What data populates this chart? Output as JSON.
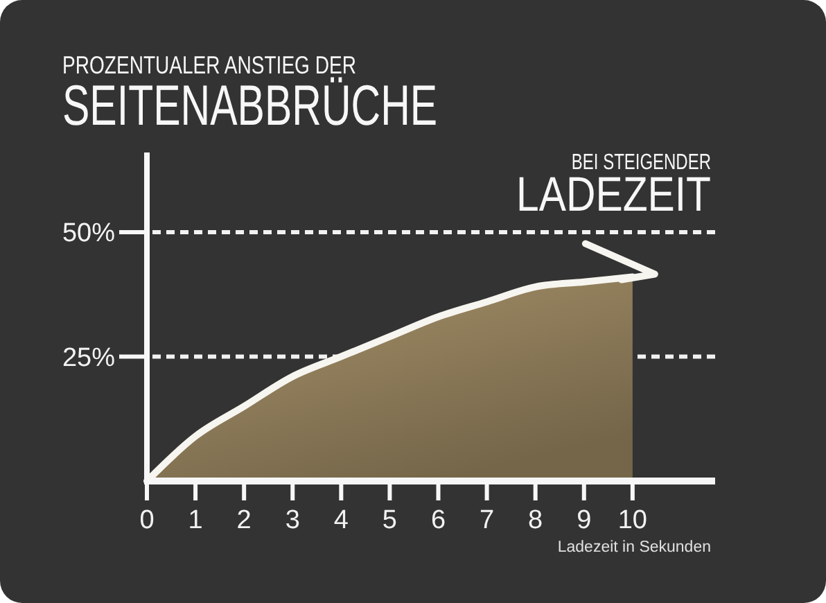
{
  "chart_data": {
    "type": "area",
    "subtitle": "PROZENTUALER ANSTIEG DER",
    "title": "SEITENABBRÜCHE",
    "annotations": [
      "BEI STEIGENDER",
      "LADEZEIT"
    ],
    "xlabel": "Ladezeit in Sekunden",
    "x": [
      0,
      1,
      2,
      3,
      4,
      5,
      6,
      7,
      8,
      9,
      10
    ],
    "series": [
      {
        "color": "#8c7a58",
        "values": [
          0,
          9,
          15,
          21,
          25,
          29,
          33,
          36,
          39,
          40,
          41
        ]
      }
    ],
    "xlim": [
      0,
      11.7
    ],
    "xticks": [
      0,
      1,
      2,
      3,
      4,
      5,
      6,
      7,
      8,
      9,
      10
    ],
    "ylim": [
      0,
      66
    ],
    "yticks": [
      {
        "value": 25,
        "label": "25%"
      },
      {
        "value": 50,
        "label": "50%"
      }
    ],
    "grid": "y"
  }
}
